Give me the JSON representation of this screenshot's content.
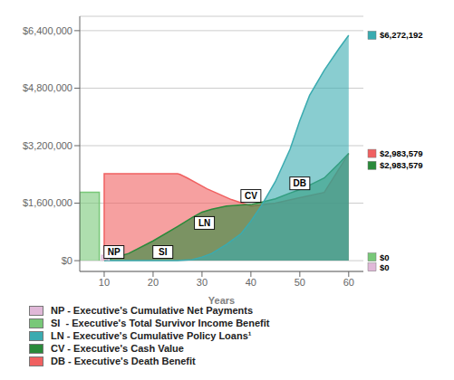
{
  "chart_data": {
    "type": "area",
    "xlabel": "Years",
    "xlim": [
      5,
      63
    ],
    "ylim": [
      -300000,
      6800000
    ],
    "xticks": [
      10,
      20,
      30,
      40,
      50,
      60
    ],
    "yticks": [
      {
        "value": 0,
        "label": "$0"
      },
      {
        "value": 1600000,
        "label": "$1,600,000"
      },
      {
        "value": 3200000,
        "label": "$3,200,000"
      },
      {
        "value": 4800000,
        "label": "$4,800,000"
      },
      {
        "value": 6400000,
        "label": "$6,400,000"
      }
    ],
    "grid": "y",
    "legend": "bottom",
    "series": [
      {
        "name": "NP - Executive's Cumulative Net Payments",
        "color": "#e0b8d8",
        "x": [
          9.5,
          9.5,
          11,
          11
        ],
        "values": [
          0,
          150000,
          150000,
          0
        ],
        "end_label": {
          "text": "$0",
          "y": -180000
        }
      },
      {
        "name": "SI  - Executive's Total Survivor Income Benefit",
        "color": "#78c878",
        "x": [
          5,
          5,
          9,
          9
        ],
        "values": [
          0,
          1900000,
          1900000,
          0
        ],
        "end_label": {
          "text": "$0",
          "y": 100000
        }
      },
      {
        "name": "LN - Executive's Cumulative Policy Loans¹",
        "color": "#3aabb0",
        "x": [
          10,
          20,
          25,
          28,
          30,
          32,
          35,
          38,
          40,
          42,
          45,
          48,
          50,
          52,
          55,
          58,
          60
        ],
        "values": [
          0,
          0,
          0,
          30000,
          100000,
          200000,
          450000,
          750000,
          1100000,
          1500000,
          2200000,
          3100000,
          3900000,
          4600000,
          5300000,
          5900000,
          6272192
        ],
        "end_label": {
          "text": "$6,272,192",
          "y": 6272192
        }
      },
      {
        "name": "CV - Executive's Cash Value",
        "color": "#2a8a3a",
        "x": [
          10,
          15,
          20,
          25,
          28,
          30,
          32,
          35,
          38,
          40,
          42,
          45,
          48,
          50,
          52,
          55,
          58,
          60
        ],
        "values": [
          0,
          200000,
          550000,
          950000,
          1200000,
          1350000,
          1430000,
          1520000,
          1550000,
          1560000,
          1620000,
          1720000,
          1880000,
          1980000,
          2100000,
          2300000,
          2700000,
          2983579
        ],
        "end_label": {
          "text": "$2,983,579",
          "y": 2650000
        }
      },
      {
        "name": "DB - Executive's Death Benefit",
        "color": "#f06060",
        "x": [
          10,
          10,
          25,
          25.5,
          27,
          29,
          31,
          33,
          36,
          40,
          45,
          50,
          55,
          60
        ],
        "values": [
          0,
          2420000,
          2420000,
          2400000,
          2300000,
          2150000,
          2000000,
          1880000,
          1700000,
          1520000,
          1600000,
          1750000,
          1900000,
          2983579
        ],
        "end_label": {
          "text": "$2,983,579",
          "y": 2983579
        }
      }
    ],
    "annotations": [
      {
        "text": "NP",
        "x": 12,
        "y": 240000
      },
      {
        "text": "SI",
        "x": 22,
        "y": 240000
      },
      {
        "text": "LN",
        "x": 30.5,
        "y": 1050000
      },
      {
        "text": "CV",
        "x": 40,
        "y": 1800000
      },
      {
        "text": "DB",
        "x": 50,
        "y": 2150000
      }
    ]
  }
}
